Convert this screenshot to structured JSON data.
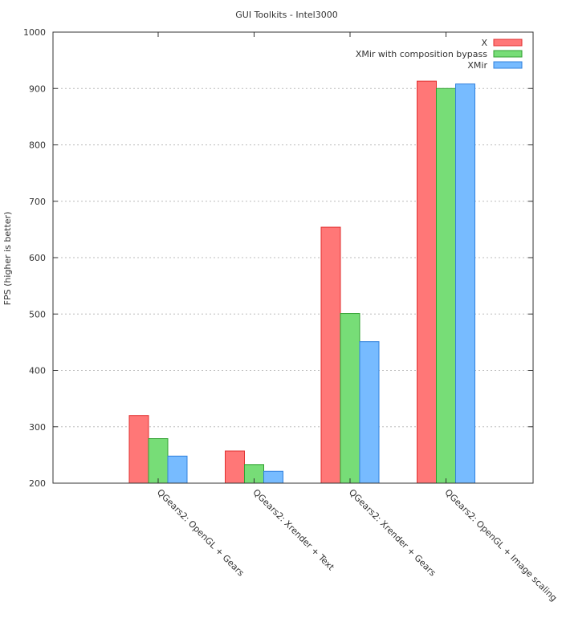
{
  "chart_data": {
    "type": "bar",
    "title": "GUI Toolkits - Intel3000",
    "xlabel": "",
    "ylabel": "FPS (higher is better)",
    "ylim": [
      200,
      1000
    ],
    "yticks": [
      200,
      300,
      400,
      500,
      600,
      700,
      800,
      900,
      1000
    ],
    "grid": true,
    "legend_position": "top-right",
    "categories": [
      "QGears2: OpenGL + Gears",
      "QGears2: Xrender + Text",
      "QGears2: Xrender + Gears",
      "QGears2: OpenGL + Image scaling"
    ],
    "series": [
      {
        "name": "X",
        "color": "#ff7777",
        "stroke": "#e03030",
        "values": [
          320,
          257,
          654,
          913
        ]
      },
      {
        "name": "XMir with composition bypass",
        "color": "#77dd77",
        "stroke": "#30a030",
        "values": [
          279,
          233,
          501,
          900
        ]
      },
      {
        "name": "XMir",
        "color": "#77bbff",
        "stroke": "#3080dd",
        "values": [
          248,
          221,
          451,
          908
        ]
      }
    ]
  }
}
